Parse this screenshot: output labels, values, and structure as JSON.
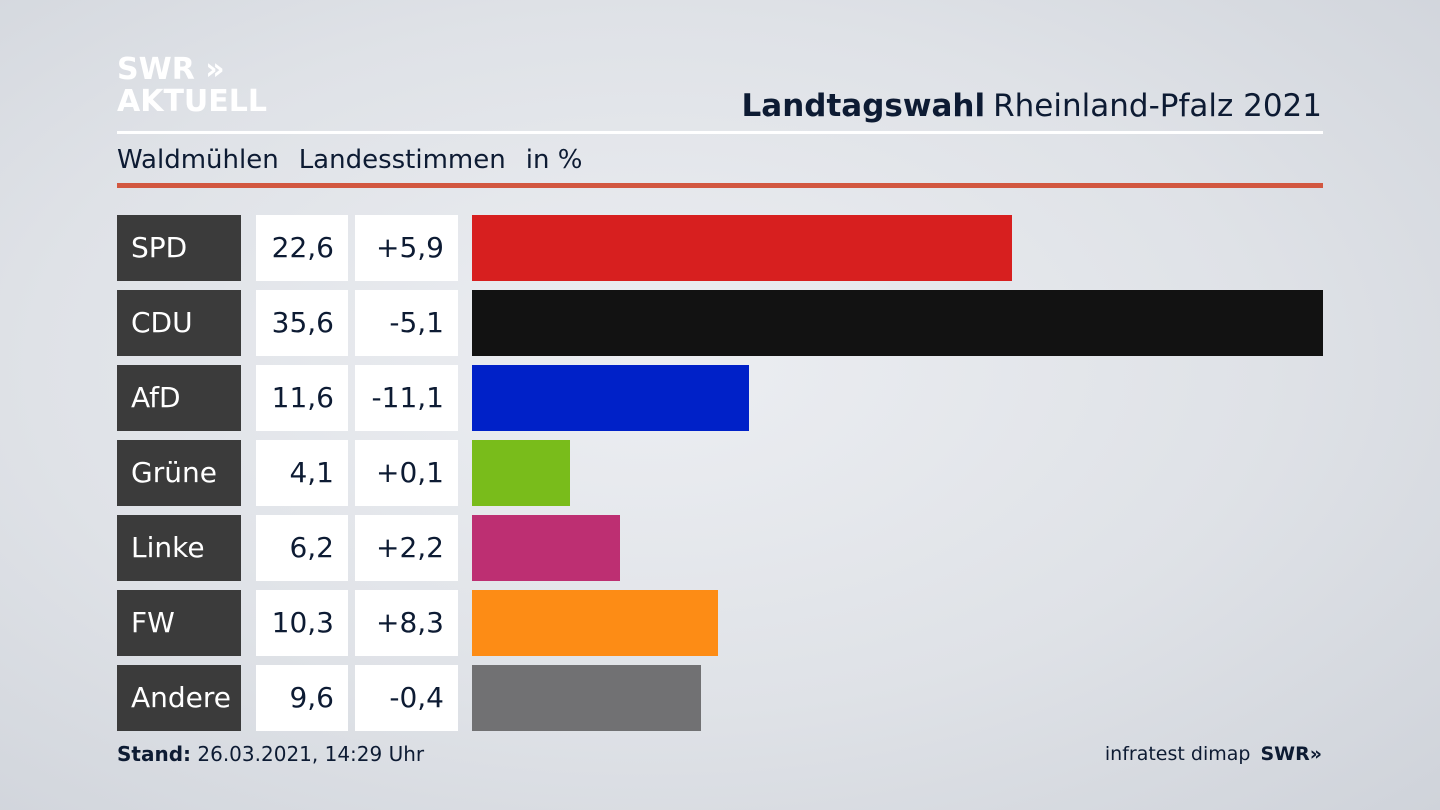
{
  "logo": {
    "line1": "SWR",
    "chevrons": "»",
    "line2": "AKTUELL"
  },
  "header": {
    "title_bold": "Landtagswahl",
    "title_rest": "Rheinland-Pfalz 2021"
  },
  "subheader": {
    "place": "Waldmühlen",
    "vote_type": "Landesstimmen",
    "unit": "in %"
  },
  "chart_data": {
    "type": "bar",
    "orientation": "horizontal",
    "title": "Landtagswahl Rheinland-Pfalz 2021",
    "categories": [
      "SPD",
      "CDU",
      "AfD",
      "Grüne",
      "Linke",
      "FW",
      "Andere"
    ],
    "series": [
      {
        "values": [
          22.6,
          35.6,
          11.6,
          4.1,
          6.2,
          10.3,
          9.6
        ]
      }
    ],
    "value_labels": [
      "22,6",
      "35,6",
      "11,6",
      "4,1",
      "6,2",
      "10,3",
      "9,6"
    ],
    "change_labels": [
      "+5,9",
      "-5,1",
      "-11,1",
      "+0,1",
      "+2,2",
      "+8,3",
      "-0,4"
    ],
    "changes": [
      5.9,
      -5.1,
      -11.1,
      0.1,
      2.2,
      8.3,
      -0.4
    ],
    "colors": [
      "#d71f1f",
      "#121212",
      "#0021c8",
      "#79bc1b",
      "#bd2f72",
      "#fd8c15",
      "#717173"
    ],
    "xlim": [
      0,
      35.6
    ],
    "grid": false
  },
  "footer": {
    "stand_label": "Stand:",
    "stand_value": "26.03.2021, 14:29 Uhr",
    "source": "infratest dimap",
    "brand": "SWR"
  }
}
